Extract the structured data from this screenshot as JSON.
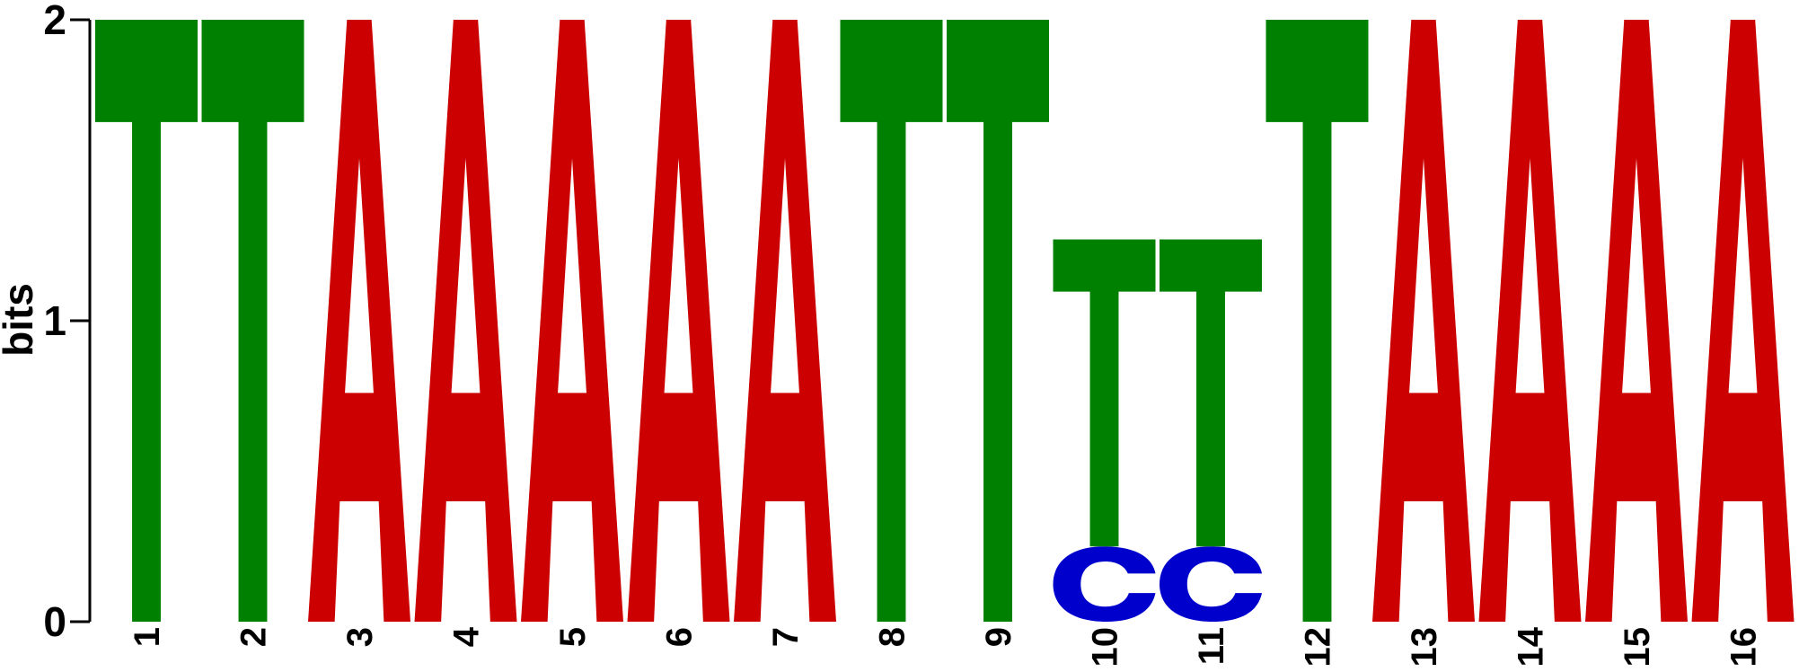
{
  "chart_data": {
    "type": "sequence-logo",
    "ylabel": "bits",
    "ylim": [
      0,
      2
    ],
    "yticks": [
      "0",
      "1",
      "2"
    ],
    "colors": {
      "A": "#cc0000",
      "C": "#0000cc",
      "G": "#ffb300",
      "T": "#008000"
    },
    "positions": [
      {
        "label": "1",
        "stack": [
          {
            "letter": "T",
            "bits": 2.0
          }
        ]
      },
      {
        "label": "2",
        "stack": [
          {
            "letter": "T",
            "bits": 2.0
          }
        ]
      },
      {
        "label": "3",
        "stack": [
          {
            "letter": "A",
            "bits": 2.0
          }
        ]
      },
      {
        "label": "4",
        "stack": [
          {
            "letter": "A",
            "bits": 2.0
          }
        ]
      },
      {
        "label": "5",
        "stack": [
          {
            "letter": "A",
            "bits": 2.0
          }
        ]
      },
      {
        "label": "6",
        "stack": [
          {
            "letter": "A",
            "bits": 2.0
          }
        ]
      },
      {
        "label": "7",
        "stack": [
          {
            "letter": "A",
            "bits": 2.0
          }
        ]
      },
      {
        "label": "8",
        "stack": [
          {
            "letter": "T",
            "bits": 2.0
          }
        ]
      },
      {
        "label": "9",
        "stack": [
          {
            "letter": "T",
            "bits": 2.0
          }
        ]
      },
      {
        "label": "10",
        "stack": [
          {
            "letter": "C",
            "bits": 0.25
          },
          {
            "letter": "T",
            "bits": 1.02
          }
        ]
      },
      {
        "label": "11",
        "stack": [
          {
            "letter": "C",
            "bits": 0.25
          },
          {
            "letter": "T",
            "bits": 1.02
          }
        ]
      },
      {
        "label": "12",
        "stack": [
          {
            "letter": "T",
            "bits": 2.0
          }
        ]
      },
      {
        "label": "13",
        "stack": [
          {
            "letter": "A",
            "bits": 2.0
          }
        ]
      },
      {
        "label": "14",
        "stack": [
          {
            "letter": "A",
            "bits": 2.0
          }
        ]
      },
      {
        "label": "15",
        "stack": [
          {
            "letter": "A",
            "bits": 2.0
          }
        ]
      },
      {
        "label": "16",
        "stack": [
          {
            "letter": "A",
            "bits": 2.0
          }
        ]
      }
    ]
  }
}
